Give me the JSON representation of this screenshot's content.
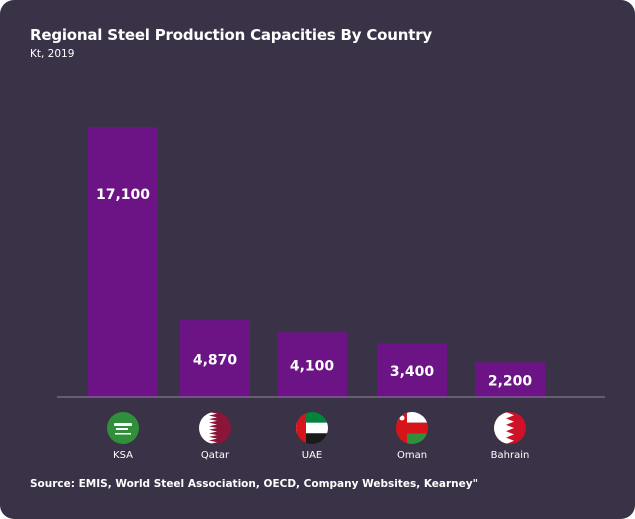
{
  "chart_data": {
    "type": "bar",
    "title": "Regional Steel Production Capacities By Country",
    "subtitle": "Kt, 2019",
    "categories": [
      "KSA",
      "Qatar",
      "UAE",
      "Oman",
      "Bahrain"
    ],
    "values": [
      17100,
      4870,
      4100,
      3400,
      2200
    ],
    "value_labels": [
      "17,100",
      "4,870",
      "4,100",
      "3,400",
      "2,200"
    ],
    "flag_icons": [
      "saudi-arabia-flag-icon",
      "qatar-flag-icon",
      "uae-flag-icon",
      "oman-flag-icon",
      "bahrain-flag-icon"
    ],
    "ylim": [
      0,
      20000
    ],
    "grid": false,
    "legend": "none",
    "source": "Source: EMIS, World Steel Association, OECD, Company Websites, Kearney\""
  },
  "colors": {
    "background": "#3a3347",
    "bar": "#6c1486",
    "axis": "#8d889a",
    "text": "#ffffff"
  }
}
